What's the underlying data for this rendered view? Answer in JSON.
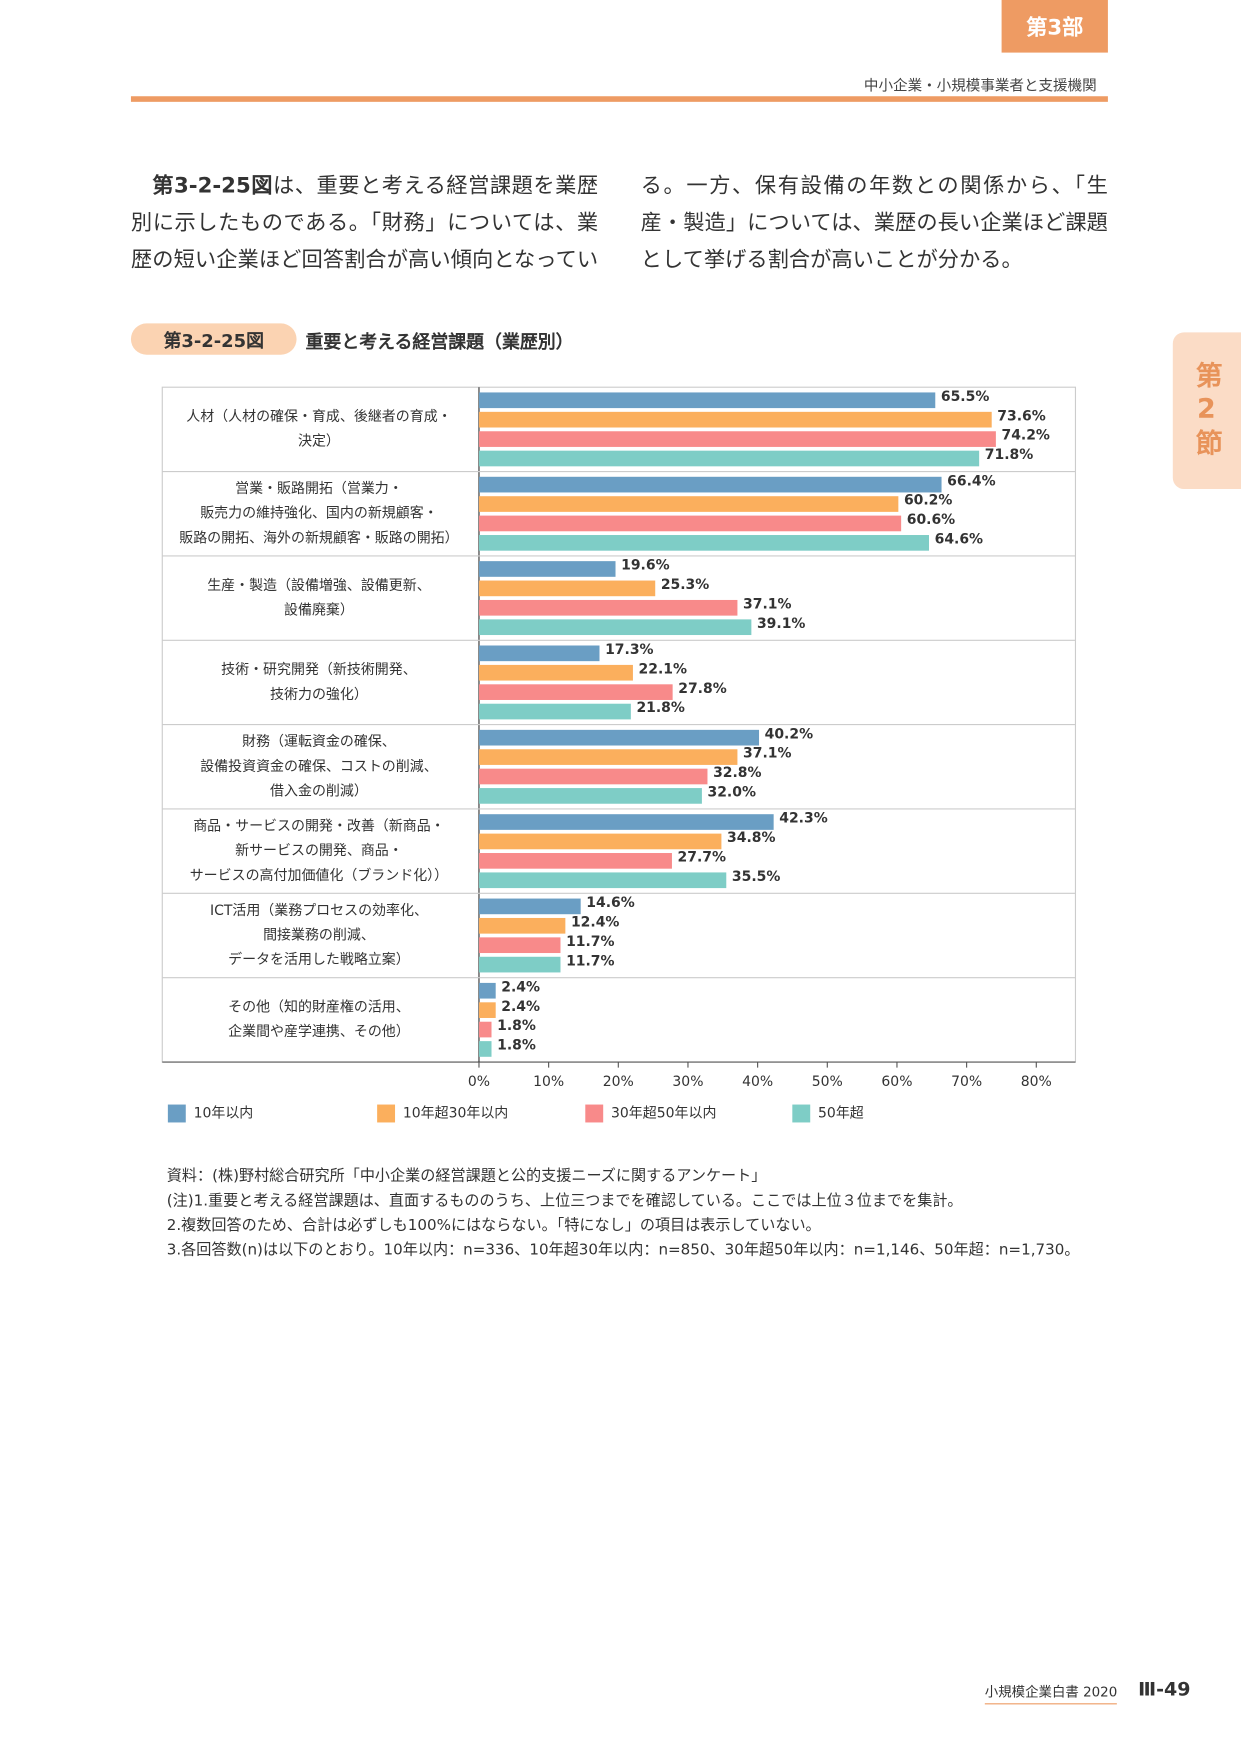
{
  "header": {
    "part_label": "第3部",
    "section_title": "中小企業・小規模事業者と支援機関"
  },
  "side_tab": "第2節",
  "body": {
    "lead": "第3-2-25図",
    "text": "は、重要と考える経営課題を業歴別に示したものである。「財務」については、業歴の短い企業ほど回答割合が高い傾向となっている。一方、保有設備の年数との関係から、「生産・製造」については、業歴の長い企業ほど課題として挙げる割合が高いことが分かる。"
  },
  "figure": {
    "number": "第3-2-25図",
    "title": "重要と考える経営課題（業歴別）"
  },
  "chart_data": {
    "type": "bar",
    "orientation": "horizontal",
    "categories": [
      "人材（人材の確保・育成、後継者の育成・\n決定）",
      "営業・販路開拓（営業力・\n販売力の維持強化、国内の新規顧客・\n販路の開拓、海外の新規顧客・販路の開拓）",
      "生産・製造（設備増強、設備更新、\n設備廃棄）",
      "技術・研究開発（新技術開発、\n技術力の強化）",
      "財務（運転資金の確保、\n設備投資資金の確保、コストの削減、\n借入金の削減）",
      "商品・サービスの開発・改善（新商品・\n新サービスの開発、商品・\nサービスの高付加価値化（ブランド化））",
      "ICT活用（業務プロセスの効率化、\n間接業務の削減、\nデータを活用した戦略立案）",
      "その他（知的財産権の活用、\n企業間や産学連携、その他）"
    ],
    "series": [
      {
        "name": "10年以内",
        "color": "#6a9ec4",
        "values": [
          65.5,
          66.4,
          19.6,
          17.3,
          40.2,
          42.3,
          14.6,
          2.4
        ],
        "value_labels": [
          "65.5%",
          "66.4%",
          "19.6%",
          "17.3%",
          "40.2%",
          "42.3%",
          "14.6%",
          "2.4%"
        ]
      },
      {
        "name": "10年超30年以内",
        "color": "#fbaf5d",
        "values": [
          73.6,
          60.2,
          25.3,
          22.1,
          37.1,
          34.8,
          12.4,
          2.4
        ],
        "value_labels": [
          "73.6%",
          "60.2%",
          "25.3%",
          "22.1%",
          "37.1%",
          "34.8%",
          "12.4%",
          "2.4%"
        ]
      },
      {
        "name": "30年超50年以内",
        "color": "#f88a8a",
        "values": [
          74.2,
          60.6,
          37.1,
          27.8,
          32.8,
          27.7,
          11.7,
          1.8
        ],
        "value_labels": [
          "74.2%",
          "60.6%",
          "37.1%",
          "27.8%",
          "32.8%",
          "27.7%",
          "11.7%",
          "1.8%"
        ]
      },
      {
        "name": "50年超",
        "color": "#7ecdc6",
        "values": [
          71.8,
          64.6,
          39.1,
          21.8,
          32.0,
          35.5,
          11.7,
          1.8
        ],
        "value_labels": [
          "71.8%",
          "64.6%",
          "39.1%",
          "21.8%",
          "32.0%",
          "35.5%",
          "11.7%",
          "1.8%"
        ]
      }
    ],
    "xlim": [
      0,
      80
    ],
    "xticks": [
      {
        "value": 0,
        "label": "0%"
      },
      {
        "value": 10,
        "label": "10%"
      },
      {
        "value": 20,
        "label": "20%"
      },
      {
        "value": 30,
        "label": "30%"
      },
      {
        "value": 40,
        "label": "40%"
      },
      {
        "value": 50,
        "label": "50%"
      },
      {
        "value": 60,
        "label": "60%"
      },
      {
        "value": 70,
        "label": "70%"
      },
      {
        "value": 80,
        "label": "80%"
      }
    ],
    "legend": "bottom"
  },
  "notes": [
    "資料：(株)野村総合研究所「中小企業の経営課題と公的支援ニーズに関するアンケート」",
    "(注)1.重要と考える経営課題は、直面するもののうち、上位三つまでを確認している。ここでは上位３位までを集計。",
    "2.複数回答のため、合計は必ずしも100%にはならない。「特になし」の項目は表示していない。",
    "3.各回答数(n)は以下のとおり。10年以内：n=336、10年超30年以内：n=850、30年超50年以内：n=1,146、50年超：n=1,730。"
  ],
  "footer": {
    "book": "小規模企業白書 2020",
    "page": "Ⅲ-49"
  }
}
